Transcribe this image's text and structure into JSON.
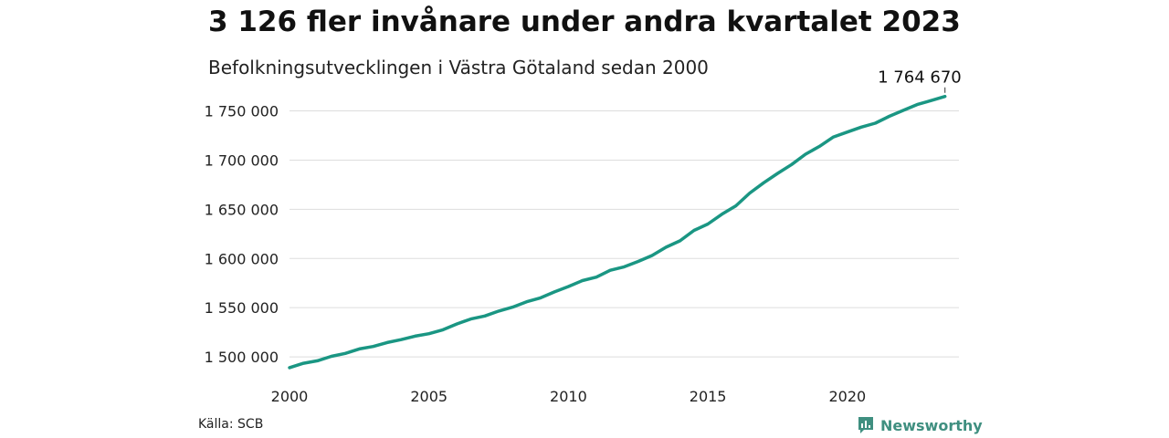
{
  "title": "3 126 fler invånare under andra kvartalet 2023",
  "subtitle": "Befolkningsutvecklingen i Västra Götaland sedan 2000",
  "source": "Källa: SCB",
  "brand": "Newsworthy",
  "colors": {
    "line": "#1a9683",
    "grid": "#dddddd",
    "brand": "#3f8f80"
  },
  "chart_data": {
    "type": "line",
    "title": "",
    "xlabel": "",
    "ylabel": "",
    "x_ticks": [
      2000,
      2005,
      2010,
      2015,
      2020
    ],
    "y_ticks": [
      1500000,
      1550000,
      1600000,
      1650000,
      1700000,
      1750000
    ],
    "y_tick_labels": [
      "1 500 000",
      "1 550 000",
      "1 600 000",
      "1 650 000",
      "1 700 000",
      "1 750 000"
    ],
    "xlim": [
      2000,
      2024
    ],
    "ylim": [
      1488000,
      1770000
    ],
    "grid": true,
    "end_label": "1 764 670",
    "series": [
      {
        "x": [
          2000.0,
          2000.5,
          2001.0,
          2001.5,
          2002.0,
          2002.5,
          2003.0,
          2003.5,
          2004.0,
          2004.5,
          2005.0,
          2005.5,
          2006.0,
          2006.5,
          2007.0,
          2007.5,
          2008.0,
          2008.5,
          2009.0,
          2009.5,
          2010.0,
          2010.5,
          2011.0,
          2011.5,
          2012.0,
          2012.5,
          2013.0,
          2013.5,
          2014.0,
          2014.5,
          2015.0,
          2015.5,
          2016.0,
          2016.5,
          2017.0,
          2017.5,
          2018.0,
          2018.5,
          2019.0,
          2019.5,
          2020.0,
          2020.5,
          2021.0,
          2021.5,
          2022.0,
          2022.5,
          2023.0,
          2023.5
        ],
        "values": [
          1489000,
          1493500,
          1496000,
          1500500,
          1503500,
          1508000,
          1510500,
          1514500,
          1517500,
          1521000,
          1523500,
          1527500,
          1533500,
          1538500,
          1541500,
          1546500,
          1550500,
          1556000,
          1560000,
          1566000,
          1571500,
          1577500,
          1581000,
          1588000,
          1591500,
          1597000,
          1603000,
          1611500,
          1618000,
          1628500,
          1635000,
          1645000,
          1653500,
          1666500,
          1677000,
          1686500,
          1695500,
          1706000,
          1714000,
          1723500,
          1728500,
          1733500,
          1737500,
          1744500,
          1750500,
          1756500,
          1760500,
          1764670
        ]
      }
    ]
  }
}
